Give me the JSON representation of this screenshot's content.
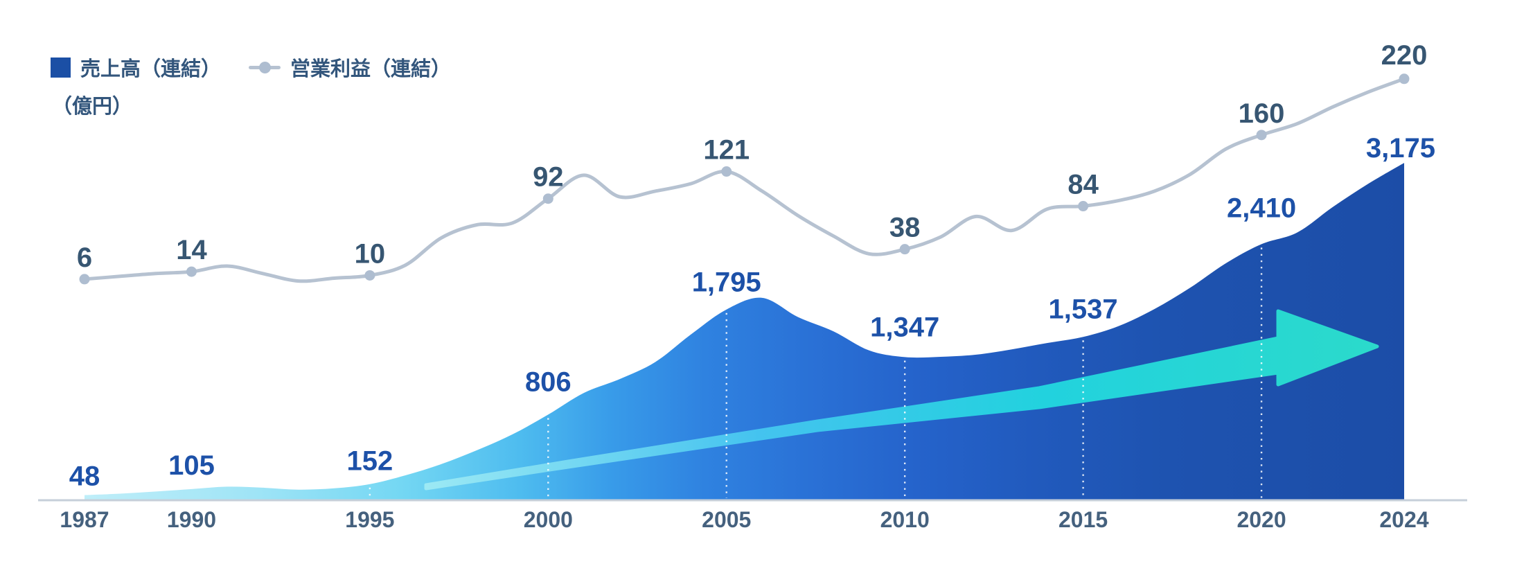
{
  "page": {
    "background": "#ffffff"
  },
  "legend": {
    "items": [
      {
        "id": "sales",
        "label": "売上高（連結）",
        "swatch": "square",
        "color": "#1b4fa5"
      },
      {
        "id": "profit",
        "label": "営業利益（連結）",
        "swatch": "line-dot",
        "color": "#b6c2d1"
      }
    ],
    "unit_label": "（億円）"
  },
  "chart_data": {
    "type": "area",
    "title": "",
    "xlabel": "",
    "ylabel": "（億円）",
    "x_ticks": [
      "1987",
      "1990",
      "1995",
      "2000",
      "2005",
      "2010",
      "2015",
      "2020",
      "2024"
    ],
    "gridlines_dashed_years": [
      1995,
      2000,
      2005,
      2010,
      2015,
      2020
    ],
    "grid": "vertical-dashed-inside-area-only",
    "legend_position": "top-left",
    "series": [
      {
        "name": "売上高（連結）",
        "type": "area",
        "unit": "億円",
        "color_gradient": [
          "#bfeef9",
          "#74d7f3",
          "#389be9",
          "#2a71d6",
          "#215abd",
          "#1c4da7"
        ],
        "label_color": "#1d51a8",
        "labeled_points": [
          {
            "year": 1987,
            "value": 48,
            "label": "48"
          },
          {
            "year": 1990,
            "value": 105,
            "label": "105"
          },
          {
            "year": 1995,
            "value": 152,
            "label": "152"
          },
          {
            "year": 2000,
            "value": 806,
            "label": "806"
          },
          {
            "year": 2005,
            "value": 1795,
            "label": "1,795"
          },
          {
            "year": 2010,
            "value": 1347,
            "label": "1,347"
          },
          {
            "year": 2015,
            "value": 1537,
            "label": "1,537"
          },
          {
            "year": 2020,
            "value": 2410,
            "label": "2,410"
          },
          {
            "year": 2024,
            "value": 3175,
            "label": "3,175"
          }
        ],
        "annual_values_estimated": {
          "years": [
            1987,
            1988,
            1989,
            1990,
            1991,
            1992,
            1993,
            1994,
            1995,
            1996,
            1997,
            1998,
            1999,
            2000,
            2001,
            2002,
            2003,
            2004,
            2005,
            2006,
            2007,
            2008,
            2009,
            2010,
            2011,
            2012,
            2013,
            2014,
            2015,
            2016,
            2017,
            2018,
            2019,
            2020,
            2021,
            2022,
            2023,
            2024
          ],
          "values": [
            48,
            62,
            82,
            105,
            128,
            118,
            100,
            112,
            152,
            235,
            340,
            470,
            620,
            806,
            1010,
            1140,
            1300,
            1560,
            1795,
            1905,
            1725,
            1590,
            1410,
            1347,
            1350,
            1370,
            1420,
            1480,
            1537,
            1640,
            1800,
            2000,
            2230,
            2410,
            2520,
            2760,
            2980,
            3175
          ]
        }
      },
      {
        "name": "営業利益（連結）",
        "type": "line",
        "unit": "億円",
        "line_color": "#b6c2d1",
        "marker_color": "#aebdd0",
        "label_color": "#375672",
        "labeled_points": [
          {
            "year": 1987,
            "value": 6,
            "label": "6"
          },
          {
            "year": 1990,
            "value": 14,
            "label": "14"
          },
          {
            "year": 1995,
            "value": 10,
            "label": "10"
          },
          {
            "year": 2000,
            "value": 92,
            "label": "92"
          },
          {
            "year": 2005,
            "value": 121,
            "label": "121"
          },
          {
            "year": 2010,
            "value": 38,
            "label": "38"
          },
          {
            "year": 2015,
            "value": 84,
            "label": "84"
          },
          {
            "year": 2020,
            "value": 160,
            "label": "160"
          },
          {
            "year": 2024,
            "value": 220,
            "label": "220"
          }
        ],
        "annual_values_estimated": {
          "years": [
            1987,
            1988,
            1989,
            1990,
            1991,
            1992,
            1993,
            1994,
            1995,
            1996,
            1997,
            1998,
            1999,
            2000,
            2001,
            2002,
            2003,
            2004,
            2005,
            2006,
            2007,
            2008,
            2009,
            2010,
            2011,
            2012,
            2013,
            2014,
            2015,
            2016,
            2017,
            2018,
            2019,
            2020,
            2021,
            2022,
            2023,
            2024
          ],
          "values": [
            6,
            9,
            12,
            14,
            20,
            12,
            4,
            7,
            10,
            21,
            50,
            64,
            66,
            92,
            117,
            94,
            100,
            108,
            121,
            100,
            74,
            52,
            33,
            38,
            51,
            73,
            58,
            81,
            84,
            90,
            100,
            118,
            145,
            160,
            172,
            190,
            206,
            220
          ]
        }
      }
    ],
    "annotations": [
      {
        "id": "growth-arrow",
        "shape": "arrow-right-up",
        "colors": [
          "#9ce9f4",
          "#44c3ef",
          "#22d2de",
          "#2bdacb"
        ],
        "meaning": "long-term upward growth trend"
      }
    ],
    "axis_line_color": "#c6cfd9",
    "colors": {
      "sales_label": "#1d51a8",
      "profit_label": "#375672",
      "tick_label": "#45617e",
      "legend_text": "#33567c"
    }
  }
}
